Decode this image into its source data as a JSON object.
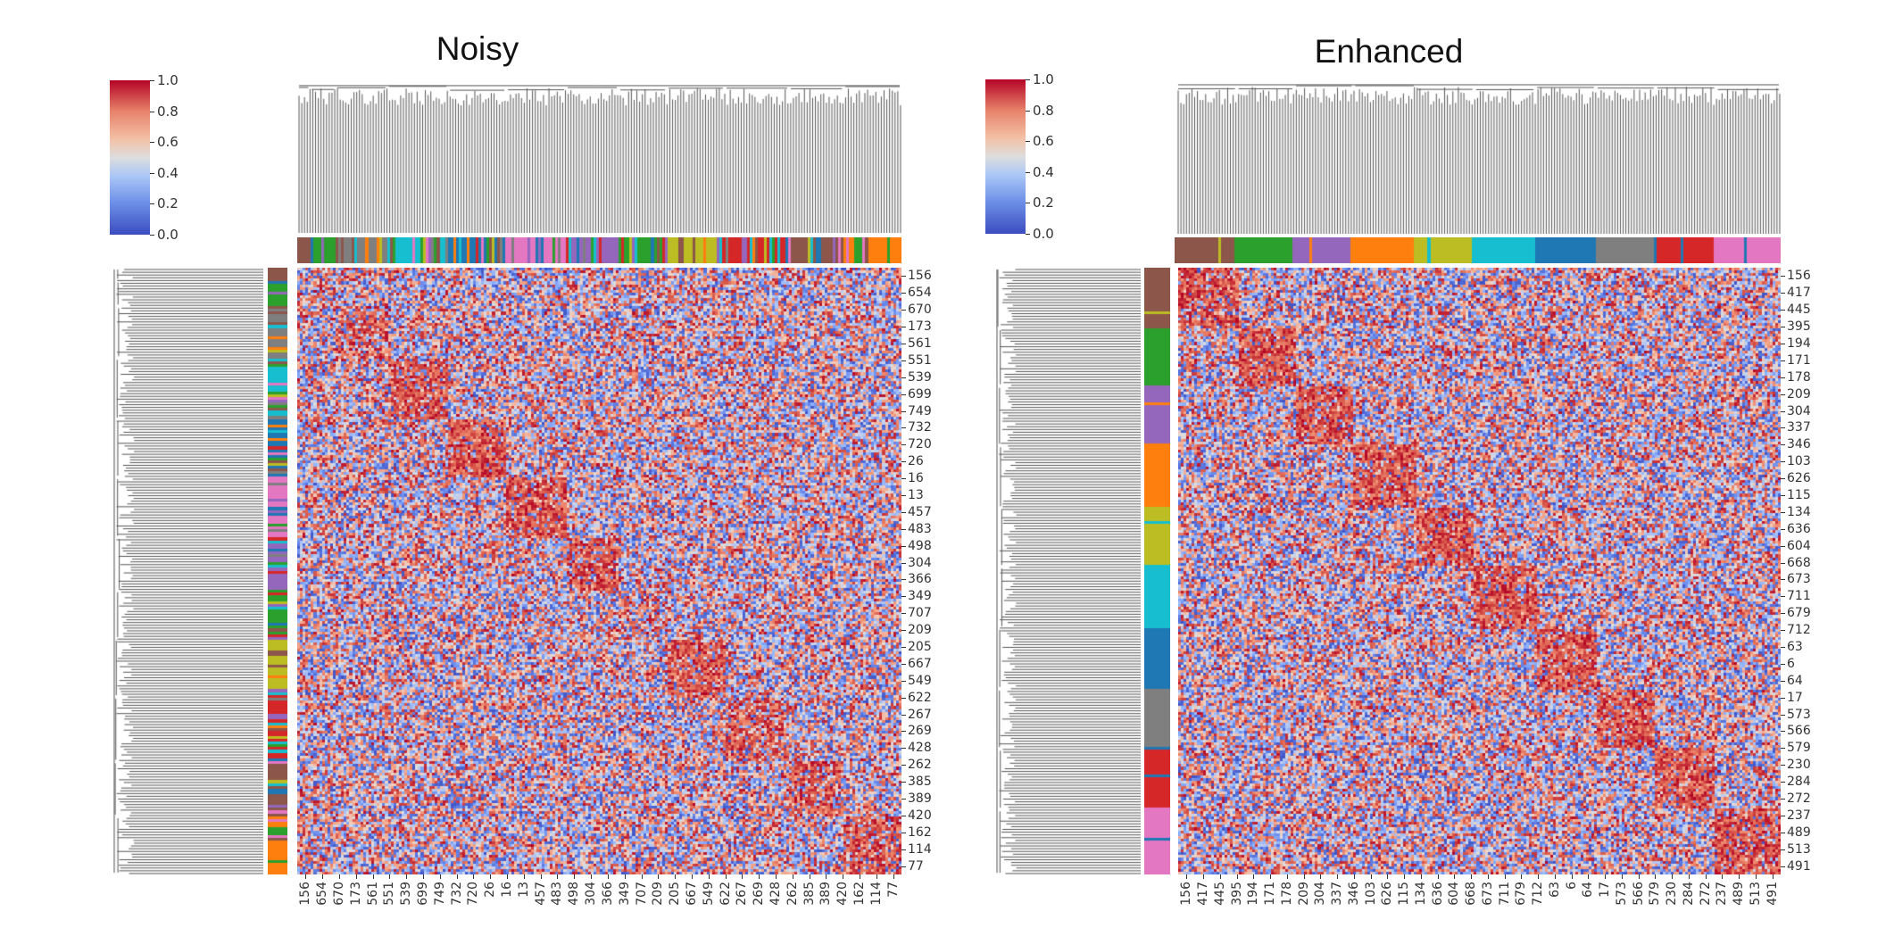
{
  "chart_data": [
    {
      "type": "heatmap",
      "title": "Noisy",
      "colorbar": {
        "range": [
          0.0,
          1.0
        ],
        "ticks": [
          "0.0",
          "0.2",
          "0.4",
          "0.6",
          "0.8",
          "1.0"
        ],
        "colormap": "coolwarm"
      },
      "row_labels": [
        "156",
        "654",
        "670",
        "173",
        "561",
        "551",
        "539",
        "699",
        "749",
        "732",
        "720",
        "26",
        "16",
        "13",
        "457",
        "483",
        "498",
        "304",
        "366",
        "349",
        "707",
        "209",
        "205",
        "667",
        "549",
        "622",
        "267",
        "269",
        "428",
        "262",
        "385",
        "389",
        "420",
        "162",
        "114",
        "77"
      ],
      "col_labels": [
        "156",
        "654",
        "670",
        "173",
        "561",
        "551",
        "539",
        "699",
        "749",
        "732",
        "720",
        "26",
        "16",
        "13",
        "457",
        "483",
        "498",
        "304",
        "366",
        "349",
        "707",
        "209",
        "205",
        "667",
        "549",
        "622",
        "267",
        "269",
        "428",
        "262",
        "385",
        "389",
        "420",
        "162",
        "114",
        "77"
      ],
      "clusters": [
        {
          "color": "#8c564b",
          "fraction": 0.02
        },
        {
          "color": "#2ca02c",
          "fraction": 0.04
        },
        {
          "color": "#7f7f7f",
          "fraction": 0.08
        },
        {
          "color": "#17becf",
          "fraction": 0.095
        },
        {
          "color": "#1f77b4",
          "fraction": 0.09
        },
        {
          "color": "#e377c2",
          "fraction": 0.093
        },
        {
          "color": "#9467bd",
          "fraction": 0.082
        },
        {
          "color": "#2ca02c",
          "fraction": 0.075
        },
        {
          "color": "#bcbd22",
          "fraction": 0.09
        },
        {
          "color": "#d62728",
          "fraction": 0.1
        },
        {
          "color": "#8c564b",
          "fraction": 0.085
        },
        {
          "color": "#ff7f0e",
          "fraction": 0.09
        }
      ],
      "block_strength": [
        0.0,
        0.35,
        0.55,
        0.7,
        0.8,
        0.75,
        0.6,
        0.25,
        0.65,
        0.6,
        0.55,
        0.6
      ],
      "label_purity": 0.6,
      "noise": 0.3
    },
    {
      "type": "heatmap",
      "title": "Enhanced",
      "colorbar": {
        "range": [
          0.0,
          1.0
        ],
        "ticks": [
          "0.0",
          "0.2",
          "0.4",
          "0.6",
          "0.8",
          "1.0"
        ],
        "colormap": "coolwarm"
      },
      "row_labels": [
        "156",
        "417",
        "445",
        "395",
        "194",
        "171",
        "178",
        "209",
        "304",
        "337",
        "346",
        "103",
        "626",
        "115",
        "134",
        "636",
        "604",
        "668",
        "673",
        "711",
        "679",
        "712",
        "63",
        "6",
        "64",
        "17",
        "573",
        "566",
        "579",
        "230",
        "284",
        "272",
        "237",
        "489",
        "513",
        "491"
      ],
      "col_labels": [
        "156",
        "417",
        "445",
        "395",
        "194",
        "171",
        "178",
        "209",
        "304",
        "337",
        "346",
        "103",
        "626",
        "115",
        "134",
        "636",
        "604",
        "668",
        "673",
        "711",
        "679",
        "712",
        "63",
        "6",
        "64",
        "17",
        "573",
        "566",
        "579",
        "230",
        "284",
        "272",
        "237",
        "489",
        "513",
        "491"
      ],
      "clusters": [
        {
          "color": "#8c564b",
          "fraction": 0.1
        },
        {
          "color": "#2ca02c",
          "fraction": 0.095
        },
        {
          "color": "#9467bd",
          "fraction": 0.098
        },
        {
          "color": "#ff7f0e",
          "fraction": 0.103
        },
        {
          "color": "#bcbd22",
          "fraction": 0.097
        },
        {
          "color": "#17becf",
          "fraction": 0.101
        },
        {
          "color": "#1f77b4",
          "fraction": 0.1
        },
        {
          "color": "#7f7f7f",
          "fraction": 0.099
        },
        {
          "color": "#d62728",
          "fraction": 0.1
        },
        {
          "color": "#e377c2",
          "fraction": 0.107
        }
      ],
      "block_strength": [
        0.75,
        0.75,
        0.75,
        0.75,
        0.75,
        0.75,
        0.75,
        0.75,
        0.75,
        0.75
      ],
      "label_purity": 0.97,
      "noise": 0.25
    }
  ]
}
